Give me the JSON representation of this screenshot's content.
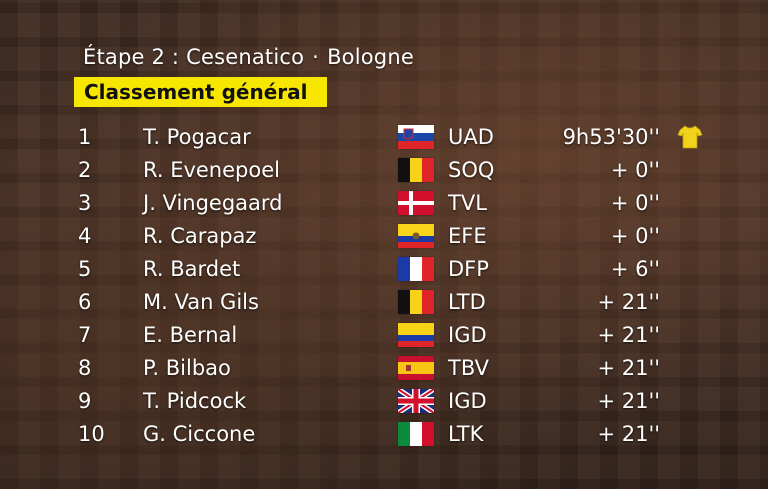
{
  "header": {
    "stage": "Étape 2 : Cesenatico",
    "separator": "·",
    "finish": "Bologne"
  },
  "badge": "Classement général",
  "rows": [
    {
      "pos": "1",
      "name": "T. Pogacar",
      "flag": "slovenia-flag-icon",
      "team": "UAD",
      "time": "9h53'30''",
      "jersey": "yellow-jersey-icon"
    },
    {
      "pos": "2",
      "name": "R. Evenepoel",
      "flag": "belgium-flag-icon",
      "team": "SOQ",
      "time": "+  0''"
    },
    {
      "pos": "3",
      "name": "J. Vingegaard",
      "flag": "denmark-flag-icon",
      "team": "TVL",
      "time": "+  0''"
    },
    {
      "pos": "4",
      "name": "R. Carapaz",
      "flag": "ecuador-flag-icon",
      "team": "EFE",
      "time": "+  0''"
    },
    {
      "pos": "5",
      "name": "R. Bardet",
      "flag": "france-flag-icon",
      "team": "DFP",
      "time": "+  6''"
    },
    {
      "pos": "6",
      "name": "M. Van Gils",
      "flag": "belgium-flag-icon",
      "team": "LTD",
      "time": "+ 21''"
    },
    {
      "pos": "7",
      "name": "E. Bernal",
      "flag": "colombia-flag-icon",
      "team": "IGD",
      "time": "+ 21''"
    },
    {
      "pos": "8",
      "name": "P. Bilbao",
      "flag": "spain-flag-icon",
      "team": "TBV",
      "time": "+ 21''"
    },
    {
      "pos": "9",
      "name": "T. Pidcock",
      "flag": "uk-flag-icon",
      "team": "IGD",
      "time": "+ 21''"
    },
    {
      "pos": "10",
      "name": "G. Ciccone",
      "flag": "italy-flag-icon",
      "team": "LTK",
      "time": "+ 21''"
    }
  ],
  "colors": {
    "badge_bg": "#f7e600",
    "text": "#ffffff",
    "jersey": "#f2d21b"
  }
}
